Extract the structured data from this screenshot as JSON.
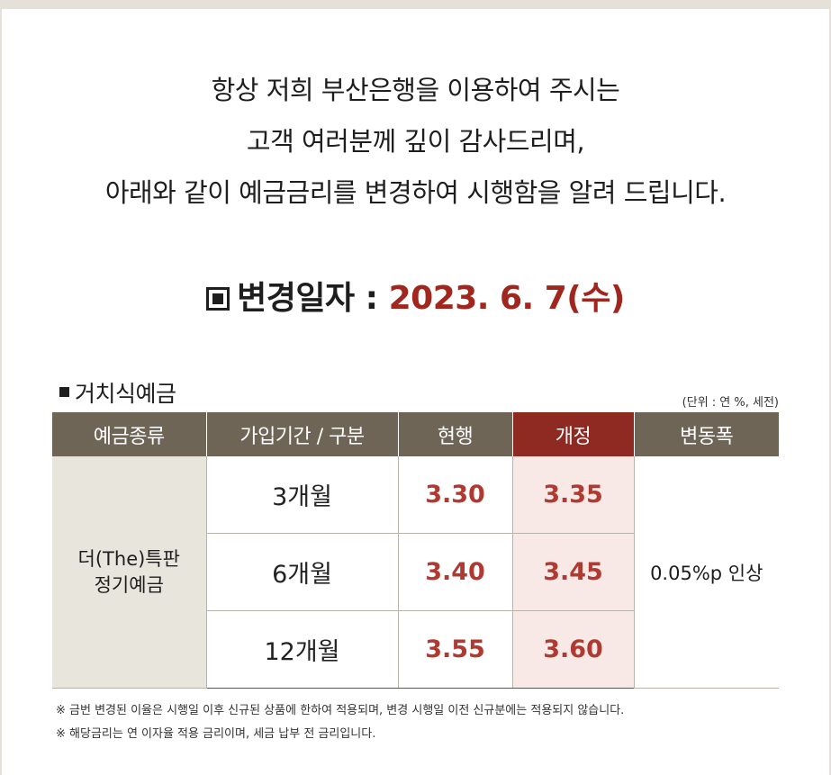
{
  "intro": {
    "line1": "항상 저희 부산은행을 이용하여 주시는",
    "line2": "고객 여러분께 깊이 감사드리며,",
    "line3": "아래와 같이 예금금리를 변경하여 시행함을 알려 드립니다."
  },
  "change_date": {
    "icon": "square-box-icon",
    "label": "변경일자 : ",
    "value": "2023. 6. 7(수)",
    "value_color": "#a0261e"
  },
  "section": {
    "title": "거치식예금",
    "unit": "(단위 : 연 %, 세전)"
  },
  "table": {
    "headers": {
      "kind": "예금종류",
      "period": "가입기간 / 구분",
      "current": "현행",
      "revised": "개정",
      "change": "변동폭"
    },
    "product_line1": "더(The)특판",
    "product_line2": "정기예금",
    "rows": [
      {
        "period": "3개월",
        "current": "3.30",
        "revised": "3.35"
      },
      {
        "period": "6개월",
        "current": "3.40",
        "revised": "3.45"
      },
      {
        "period": "12개월",
        "current": "3.55",
        "revised": "3.60"
      }
    ],
    "change": "0.05%p 인상",
    "colors": {
      "header_bg": "#6f6556",
      "revised_header_bg": "#8f2a22",
      "rate_text": "#b03a32",
      "revised_cell_bg": "#f8e8e6",
      "kind_cell_bg": "#e8e5dd"
    }
  },
  "notes": {
    "note1": "※ 금번 변경된 이율은 시행일 이후 신규된 상품에 한하여 적용되며, 변경 시행일 이전 신규분에는 적용되지 않습니다.",
    "note2": "※ 해당금리는 연 이자율 적용 금리이며, 세금 납부 전 금리입니다."
  }
}
